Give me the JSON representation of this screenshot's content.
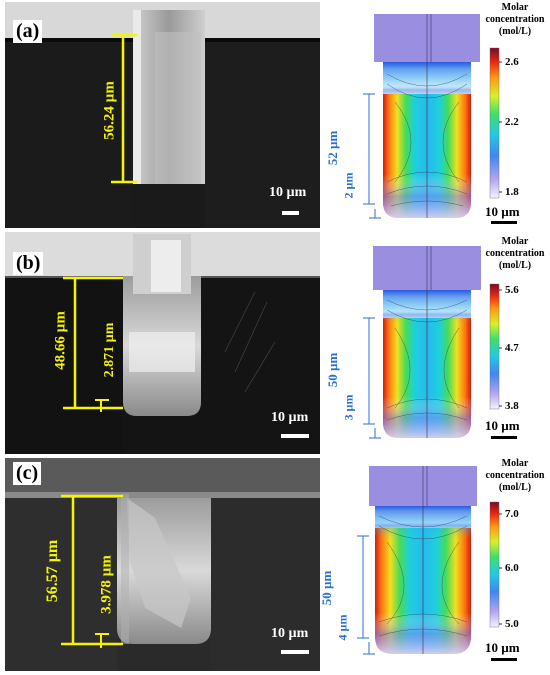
{
  "panels": [
    {
      "label": "(a)",
      "depth_label": "56.24 µm",
      "bottom_label": "",
      "sem_scale": "10 µm",
      "sim_depth": "52 µm",
      "sim_bottom": "2 µm",
      "legend_title": [
        "Molar",
        "concentration",
        "(mol/L)"
      ],
      "legend_ticks": [
        "2.6",
        "2.2",
        "1.8"
      ],
      "sim_scale": "10 µm"
    },
    {
      "label": "(b)",
      "depth_label": "48.66 µm",
      "bottom_label": "2.871 µm",
      "sem_scale": "10 µm",
      "sim_depth": "50 µm",
      "sim_bottom": "3 µm",
      "legend_title": [
        "Molar",
        "concentration",
        "(mol/L)"
      ],
      "legend_ticks": [
        "5.6",
        "4.7",
        "3.8"
      ],
      "sim_scale": "10 µm"
    },
    {
      "label": "(c)",
      "depth_label": "56.57 µm",
      "bottom_label": "3.978 µm",
      "sem_scale": "10 µm",
      "sim_depth": "50 µm",
      "sim_bottom": "4 µm",
      "legend_title": [
        "Molar",
        "concentration",
        "(mol/L)"
      ],
      "legend_ticks": [
        "7.0",
        "6.0",
        "5.0"
      ],
      "sim_scale": "10 µm"
    }
  ],
  "colors": {
    "annotation_yellow": "#f5f500",
    "annotation_blue": "#2a6fd6",
    "electrode_purple": "#9a8ee0"
  }
}
